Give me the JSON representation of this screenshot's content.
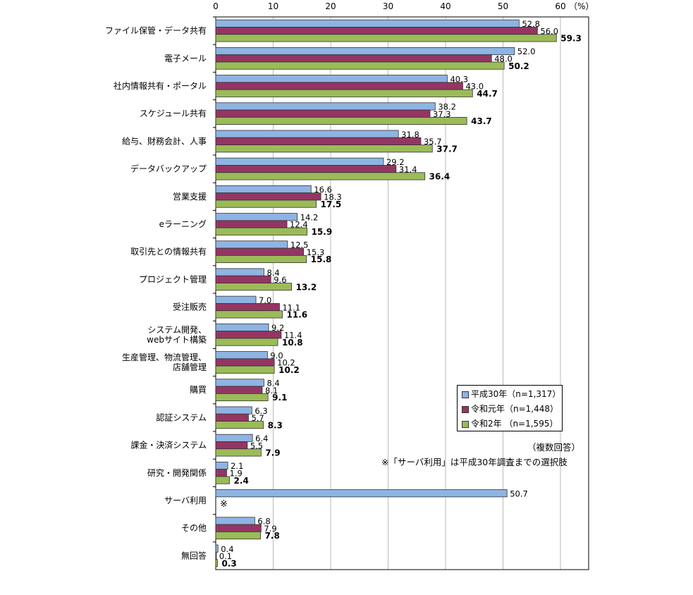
{
  "chart_data": {
    "type": "bar",
    "orientation": "horizontal",
    "unit_label": "（%）",
    "xlim": [
      0,
      60
    ],
    "xticks": [
      0,
      10,
      20,
      30,
      40,
      50,
      60
    ],
    "grid": true,
    "legend_placement": "bottom-right",
    "categories": [
      "ファイル保管・データ共有",
      "電子メール",
      "社内情報共有・ポータル",
      "スケジュール共有",
      "給与、財務会計、人事",
      "データバックアップ",
      "営業支援",
      "eラーニング",
      "取引先との情報共有",
      "プロジェクト管理",
      "受注販売",
      "システム開発、\nwebサイト構築",
      "生産管理、物流管理、\n店舗管理",
      "購買",
      "認証システム",
      "課金・決済システム",
      "研究・開発関係",
      "サーバ利用",
      "その他",
      "無回答"
    ],
    "series": [
      {
        "name": "平成30年（n=1,317）",
        "color": "#8EB4E3",
        "values": [
          52.8,
          52.0,
          40.3,
          38.2,
          31.8,
          29.2,
          16.6,
          14.2,
          12.5,
          8.4,
          7.0,
          9.2,
          9.0,
          8.4,
          6.3,
          6.4,
          2.1,
          50.7,
          6.8,
          0.4
        ]
      },
      {
        "name": "令和元年（n=1,448）",
        "color": "#953563",
        "values": [
          56.0,
          48.0,
          43.0,
          37.3,
          35.7,
          31.4,
          18.3,
          12.4,
          15.3,
          9.6,
          11.1,
          11.4,
          10.2,
          8.1,
          5.7,
          5.5,
          1.9,
          null,
          7.9,
          0.1
        ]
      },
      {
        "name": "令和2年 （n=1,595）",
        "color": "#9BBB59",
        "values": [
          59.3,
          50.2,
          44.7,
          43.7,
          37.7,
          36.4,
          17.5,
          15.9,
          15.8,
          13.2,
          11.6,
          10.8,
          10.2,
          9.1,
          8.3,
          7.9,
          2.4,
          null,
          7.8,
          0.3
        ]
      }
    ],
    "annotations": {
      "missing_mark": "※",
      "multi_answer": "（複数回答）",
      "footnote": "※「サーバ利用」は平成30年調査までの選択肢"
    }
  }
}
